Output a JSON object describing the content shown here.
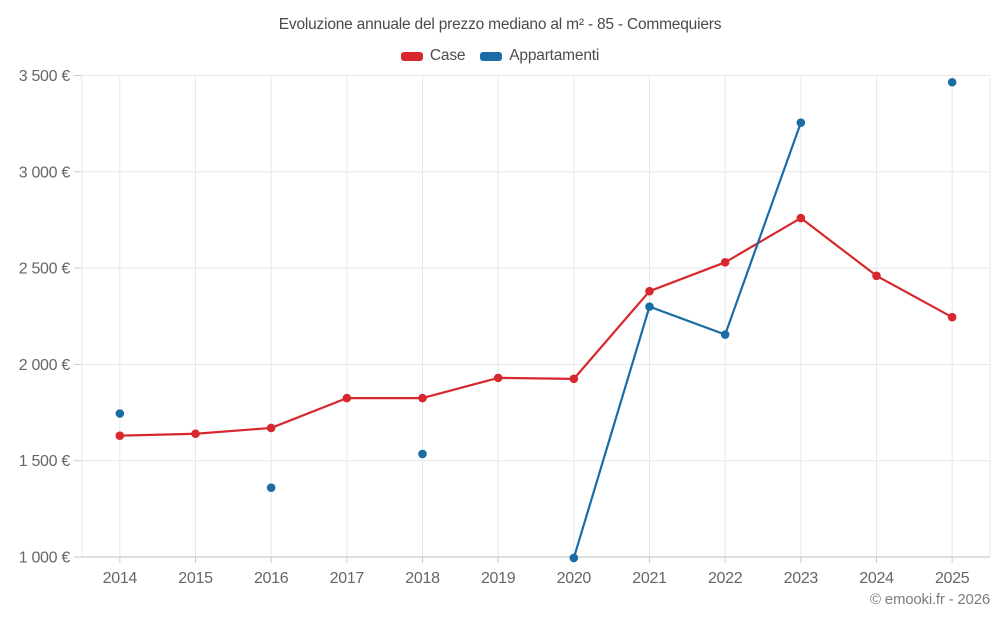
{
  "footer": {
    "credit": "© emooki.fr - 2026"
  },
  "legend": [
    {
      "label": "Case",
      "color": "#d7282e"
    },
    {
      "label": "Appartamenti",
      "color": "#1b6ca5"
    }
  ],
  "colors": {
    "grid": "#e8e8e8",
    "axis": "#cccccc",
    "tick_text": "#666666",
    "title_text": "#4a4a4a",
    "footer_text": "#7d7d7d",
    "case_red": "#d7282e",
    "appartamenti_blue": "#1b6ca5"
  },
  "chart_data": {
    "type": "line",
    "title": "Evoluzione annuale del prezzo mediano al m² - 85 - Commequiers",
    "xlabel": "",
    "ylabel": "",
    "categories": [
      "2014",
      "2015",
      "2016",
      "2017",
      "2018",
      "2019",
      "2020",
      "2021",
      "2022",
      "2023",
      "2024",
      "2025"
    ],
    "series": [
      {
        "name": "Case",
        "color": "#d7282e",
        "values": [
          1630,
          1640,
          1670,
          1825,
          1825,
          1930,
          1925,
          2380,
          2530,
          2760,
          2460,
          2245
        ]
      },
      {
        "name": "Appartamenti",
        "color": "#1b6ca5",
        "values": [
          1745,
          null,
          1360,
          null,
          1535,
          null,
          995,
          2300,
          2155,
          3255,
          null,
          3465
        ]
      }
    ],
    "ylim": [
      1000,
      3500
    ],
    "ytick_step": 500,
    "ytick_labels": [
      "1 000 €",
      "1 500 €",
      "2 000 €",
      "2 500 €",
      "3 000 €",
      "3 500 €"
    ],
    "grid": true,
    "legend_position": "top",
    "gap_policy": "break-line-on-missing-year",
    "currency": "€"
  }
}
